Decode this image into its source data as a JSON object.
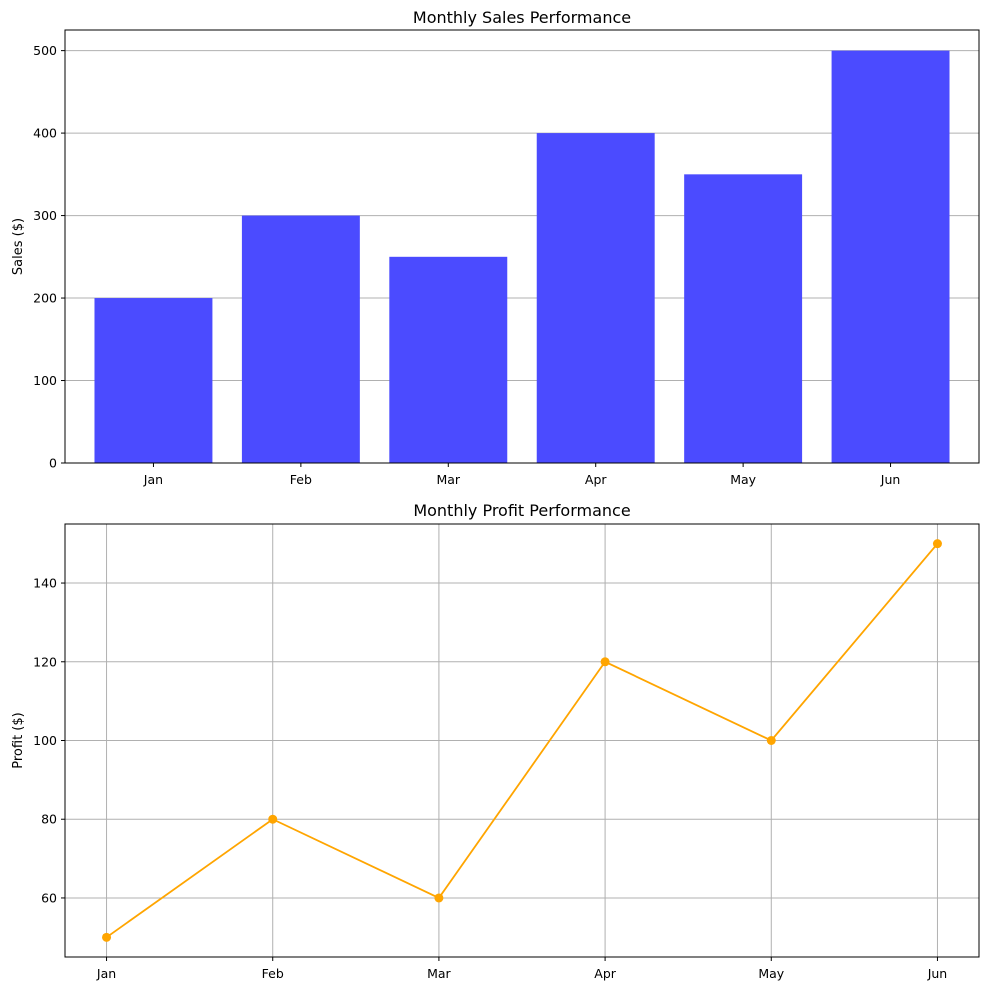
{
  "chart_data": [
    {
      "type": "bar",
      "title": "Monthly Sales Performance",
      "xlabel": "",
      "ylabel": "Sales ($)",
      "categories": [
        "Jan",
        "Feb",
        "Mar",
        "Apr",
        "May",
        "Jun"
      ],
      "values": [
        200,
        300,
        250,
        400,
        350,
        500
      ],
      "ylim": [
        0,
        525
      ],
      "yticks": [
        0,
        100,
        200,
        300,
        400,
        500
      ],
      "grid": "y",
      "color": "#4b4bff"
    },
    {
      "type": "line",
      "title": "Monthly Profit Performance",
      "xlabel": "",
      "ylabel": "Profit ($)",
      "categories": [
        "Jan",
        "Feb",
        "Mar",
        "Apr",
        "May",
        "Jun"
      ],
      "values": [
        50,
        80,
        60,
        120,
        100,
        150
      ],
      "ylim": [
        45,
        155
      ],
      "yticks": [
        60,
        80,
        100,
        120,
        140
      ],
      "grid": "both",
      "markers": true,
      "color": "#ffa500"
    }
  ]
}
